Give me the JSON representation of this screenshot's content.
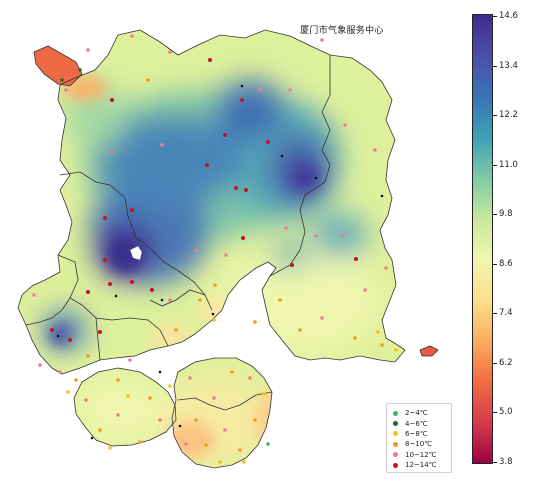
{
  "title": "厦门市气象服务中心",
  "colorbar": {
    "ticks": [
      "14.6",
      "13.4",
      "12.2",
      "11.0",
      "9.8",
      "8.6",
      "7.4",
      "6.2",
      "5.0",
      "3.8"
    ],
    "colors": [
      "#3f2a8f",
      "#4a4fa8",
      "#3b73b7",
      "#3fa0b6",
      "#7fcaa5",
      "#c7e89e",
      "#f2f6b0",
      "#fddf8b",
      "#fbad5f",
      "#f36c43",
      "#d63b4a",
      "#9e0142"
    ]
  },
  "legend": [
    {
      "label": "2~4℃",
      "color": "#3cb55a"
    },
    {
      "label": "4~6℃",
      "color": "#1e6b33"
    },
    {
      "label": "6~8℃",
      "color": "#f2c21e"
    },
    {
      "label": "8~10℃",
      "color": "#f39a1c"
    },
    {
      "label": "10~12℃",
      "color": "#f07e8a"
    },
    {
      "label": "12~14℃",
      "color": "#c01428"
    }
  ]
}
